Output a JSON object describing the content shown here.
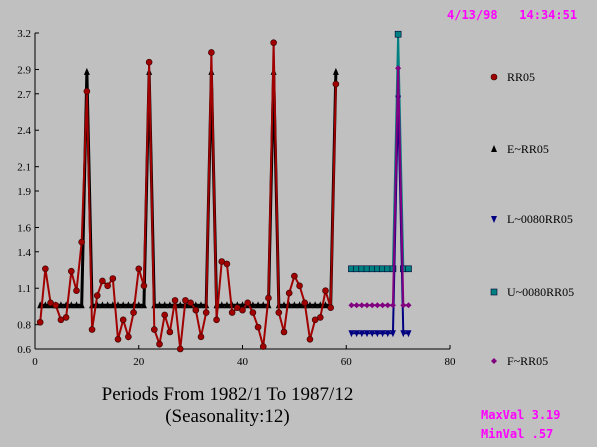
{
  "header": {
    "date": "4/13/98",
    "time": "14:34:51"
  },
  "footer": {
    "caption_line1": "Periods From 1982/1 To 1987/12",
    "caption_line2": "(Seasonality:12)",
    "maxval_label": "MaxVal",
    "maxval": "3.19",
    "minval_label": "MinVal",
    "minval": ".57"
  },
  "chart_data": {
    "type": "line",
    "xlim": [
      0,
      80
    ],
    "ylim": [
      0.6,
      3.2
    ],
    "x_ticks": [
      0,
      20,
      40,
      60,
      80
    ],
    "y_ticks": [
      "0.6",
      "0.8",
      "1.1",
      "1.4",
      "1.6",
      "1.9",
      "2.1",
      "2.4",
      "2.7",
      "2.9",
      "3.2"
    ],
    "grid": false,
    "legend_position": "right",
    "series": [
      {
        "name": "RR05",
        "color": "#a00000",
        "marker": "circle",
        "x": [
          1,
          2,
          3,
          4,
          5,
          6,
          7,
          8,
          9,
          10,
          11,
          12,
          13,
          14,
          15,
          16,
          17,
          18,
          19,
          20,
          21,
          22,
          23,
          24,
          25,
          26,
          27,
          28,
          29,
          30,
          31,
          32,
          33,
          34,
          35,
          36,
          37,
          38,
          39,
          40,
          41,
          42,
          43,
          44,
          45,
          46,
          47,
          48,
          49,
          50,
          51,
          52,
          53,
          54,
          55,
          56,
          57,
          58
        ],
        "y": [
          0.82,
          1.26,
          0.98,
          0.96,
          0.84,
          0.86,
          1.24,
          1.08,
          1.48,
          2.72,
          0.76,
          1.04,
          1.16,
          1.12,
          1.18,
          0.68,
          0.84,
          0.7,
          0.9,
          1.26,
          1.12,
          2.96,
          0.76,
          0.64,
          0.88,
          0.74,
          1.0,
          0.6,
          1.0,
          0.98,
          0.92,
          0.7,
          0.9,
          3.04,
          0.84,
          1.32,
          1.3,
          0.9,
          0.94,
          0.92,
          0.98,
          0.9,
          0.78,
          0.62,
          1.02,
          3.12,
          0.9,
          0.74,
          1.06,
          1.2,
          1.12,
          0.98,
          0.68,
          0.84,
          0.86,
          1.08,
          0.94,
          2.78
        ]
      },
      {
        "name": "E~RR05",
        "color": "#000000",
        "marker": "triangle-up",
        "x": [
          1,
          2,
          3,
          4,
          5,
          6,
          7,
          8,
          9,
          10,
          11,
          12,
          13,
          14,
          15,
          16,
          17,
          18,
          19,
          20,
          21,
          22,
          23,
          24,
          25,
          26,
          27,
          28,
          29,
          30,
          31,
          32,
          33,
          34,
          35,
          36,
          37,
          38,
          39,
          40,
          41,
          42,
          43,
          44,
          45,
          46,
          47,
          48,
          49,
          50,
          51,
          52,
          53,
          54,
          55,
          56,
          57,
          58
        ],
        "y": [
          0.96,
          0.96,
          0.96,
          0.96,
          0.96,
          0.96,
          0.96,
          0.96,
          0.96,
          2.88,
          0.96,
          0.96,
          0.96,
          0.96,
          0.96,
          0.96,
          0.96,
          0.96,
          0.96,
          0.96,
          0.96,
          2.88,
          0.96,
          0.96,
          0.96,
          0.96,
          0.96,
          0.96,
          0.96,
          0.96,
          0.96,
          0.96,
          0.96,
          2.88,
          0.96,
          0.96,
          0.96,
          0.96,
          0.96,
          0.96,
          0.96,
          0.96,
          0.96,
          0.96,
          0.96,
          2.88,
          0.96,
          0.96,
          0.96,
          0.96,
          0.96,
          0.96,
          0.96,
          0.96,
          0.96,
          0.96,
          0.96,
          2.88
        ]
      },
      {
        "name": "L~0080RR05",
        "color": "#000080",
        "marker": "triangle-down",
        "x": [
          61,
          62,
          63,
          64,
          65,
          66,
          67,
          68,
          69,
          70,
          71,
          72
        ],
        "y": [
          0.73,
          0.73,
          0.73,
          0.73,
          0.73,
          0.73,
          0.73,
          0.73,
          0.73,
          2.66,
          0.73,
          0.73
        ]
      },
      {
        "name": "U~0080RR05",
        "color": "#008080",
        "marker": "square",
        "x": [
          61,
          62,
          63,
          64,
          65,
          66,
          67,
          68,
          69,
          70,
          71,
          72
        ],
        "y": [
          1.26,
          1.26,
          1.26,
          1.26,
          1.26,
          1.26,
          1.26,
          1.26,
          1.26,
          3.19,
          1.26,
          1.26
        ]
      },
      {
        "name": "F~RR05",
        "color": "#800080",
        "marker": "diamond",
        "x": [
          61,
          62,
          63,
          64,
          65,
          66,
          67,
          68,
          69,
          70,
          71,
          72
        ],
        "y": [
          0.96,
          0.96,
          0.96,
          0.96,
          0.96,
          0.96,
          0.96,
          0.96,
          0.96,
          2.91,
          0.96,
          0.96
        ]
      }
    ]
  }
}
